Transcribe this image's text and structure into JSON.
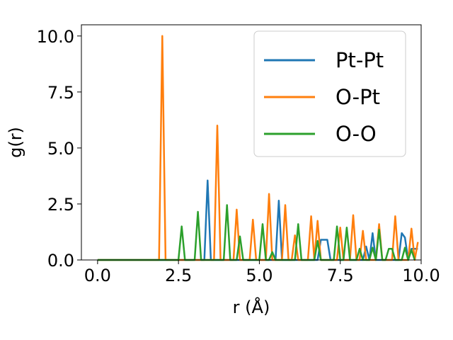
{
  "chart_data": {
    "type": "line",
    "xlabel": "r (Å)",
    "ylabel": "g(r)",
    "xlim": [
      -0.5,
      10.0
    ],
    "ylim": [
      0.0,
      10.5
    ],
    "xticks": [
      "0.0",
      "2.5",
      "5.0",
      "7.5",
      "10.0"
    ],
    "yticks": [
      "0.0",
      "2.5",
      "5.0",
      "7.5",
      "10.0"
    ],
    "grid": false,
    "legend_position": "top-right",
    "series": [
      {
        "name": "Pt-Pt",
        "color": "#1f77b4",
        "points": [
          [
            0.0,
            0.0
          ],
          [
            3.3,
            0.0
          ],
          [
            3.4,
            3.55
          ],
          [
            3.5,
            0.0
          ],
          [
            5.5,
            0.0
          ],
          [
            5.6,
            2.65
          ],
          [
            5.7,
            0.0
          ],
          [
            6.8,
            0.0
          ],
          [
            6.9,
            0.9
          ],
          [
            7.1,
            0.9
          ],
          [
            7.2,
            0.0
          ],
          [
            8.2,
            0.0
          ],
          [
            8.3,
            0.6
          ],
          [
            8.4,
            0.0
          ],
          [
            8.5,
            1.2
          ],
          [
            8.6,
            0.0
          ],
          [
            9.3,
            0.0
          ],
          [
            9.4,
            1.2
          ],
          [
            9.5,
            1.0
          ],
          [
            9.6,
            0.0
          ],
          [
            9.7,
            0.5
          ],
          [
            9.9,
            0.5
          ]
        ]
      },
      {
        "name": "O-Pt",
        "color": "#ff7f0e",
        "points": [
          [
            0.0,
            0.0
          ],
          [
            1.9,
            0.0
          ],
          [
            2.0,
            10.0
          ],
          [
            2.1,
            0.0
          ],
          [
            3.6,
            0.0
          ],
          [
            3.7,
            6.0
          ],
          [
            3.8,
            0.0
          ],
          [
            4.2,
            0.0
          ],
          [
            4.3,
            2.25
          ],
          [
            4.4,
            0.0
          ],
          [
            4.7,
            0.0
          ],
          [
            4.8,
            1.8
          ],
          [
            4.9,
            0.0
          ],
          [
            5.2,
            0.0
          ],
          [
            5.3,
            2.95
          ],
          [
            5.4,
            0.0
          ],
          [
            5.7,
            0.0
          ],
          [
            5.8,
            2.45
          ],
          [
            5.9,
            0.0
          ],
          [
            6.0,
            0.0
          ],
          [
            6.1,
            1.1
          ],
          [
            6.2,
            0.0
          ],
          [
            6.5,
            0.0
          ],
          [
            6.6,
            1.95
          ],
          [
            6.7,
            0.0
          ],
          [
            6.8,
            1.75
          ],
          [
            6.9,
            0.0
          ],
          [
            7.4,
            0.0
          ],
          [
            7.5,
            1.45
          ],
          [
            7.6,
            0.0
          ],
          [
            7.8,
            0.0
          ],
          [
            7.9,
            2.0
          ],
          [
            8.0,
            0.0
          ],
          [
            8.1,
            0.0
          ],
          [
            8.2,
            1.3
          ],
          [
            8.3,
            0.0
          ],
          [
            8.6,
            0.0
          ],
          [
            8.7,
            1.6
          ],
          [
            8.8,
            0.0
          ],
          [
            9.1,
            0.0
          ],
          [
            9.2,
            1.95
          ],
          [
            9.3,
            0.0
          ],
          [
            9.6,
            0.0
          ],
          [
            9.7,
            1.4
          ],
          [
            9.8,
            0.0
          ],
          [
            9.9,
            0.8
          ]
        ]
      },
      {
        "name": "O-O",
        "color": "#2ca02c",
        "points": [
          [
            0.0,
            0.0
          ],
          [
            2.5,
            0.0
          ],
          [
            2.6,
            1.5
          ],
          [
            2.7,
            0.0
          ],
          [
            3.0,
            0.0
          ],
          [
            3.1,
            2.15
          ],
          [
            3.2,
            0.0
          ],
          [
            3.9,
            0.0
          ],
          [
            4.0,
            2.45
          ],
          [
            4.1,
            0.0
          ],
          [
            4.3,
            0.0
          ],
          [
            4.4,
            1.05
          ],
          [
            4.5,
            0.0
          ],
          [
            5.0,
            0.0
          ],
          [
            5.1,
            1.6
          ],
          [
            5.2,
            0.0
          ],
          [
            5.3,
            0.0
          ],
          [
            5.4,
            0.35
          ],
          [
            5.5,
            0.0
          ],
          [
            6.1,
            0.0
          ],
          [
            6.2,
            1.6
          ],
          [
            6.3,
            0.0
          ],
          [
            6.7,
            0.0
          ],
          [
            6.8,
            0.85
          ],
          [
            6.9,
            0.0
          ],
          [
            7.3,
            0.0
          ],
          [
            7.4,
            1.5
          ],
          [
            7.5,
            0.0
          ],
          [
            7.6,
            0.0
          ],
          [
            7.7,
            1.45
          ],
          [
            7.8,
            0.0
          ],
          [
            8.0,
            0.0
          ],
          [
            8.1,
            0.5
          ],
          [
            8.2,
            0.0
          ],
          [
            8.4,
            0.0
          ],
          [
            8.5,
            0.55
          ],
          [
            8.6,
            0.0
          ],
          [
            8.7,
            1.35
          ],
          [
            8.8,
            0.0
          ],
          [
            8.9,
            0.0
          ],
          [
            9.0,
            0.5
          ],
          [
            9.1,
            0.5
          ],
          [
            9.2,
            0.0
          ],
          [
            9.4,
            0.0
          ],
          [
            9.5,
            0.55
          ],
          [
            9.6,
            0.0
          ],
          [
            9.7,
            0.45
          ],
          [
            9.8,
            0.0
          ]
        ]
      }
    ]
  }
}
